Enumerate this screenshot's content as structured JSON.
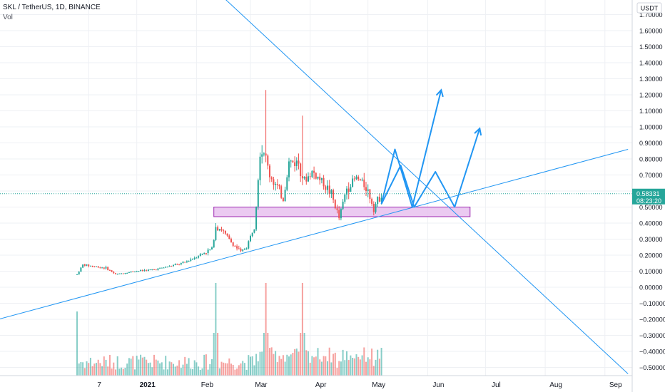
{
  "header": {
    "symbol": "SKL / TetherUS, 1D, BINANCE",
    "volume_label": "Vol"
  },
  "colors": {
    "up": "#26a69a",
    "down": "#ef5350",
    "trendline": "#2196f3",
    "zone_fill": "#e8c1ee",
    "zone_border": "#9c27b0",
    "price_tag": "#26a69a",
    "grid": "#eef0f4"
  },
  "chart_data": {
    "type": "candlestick",
    "currency_label": "USDT",
    "y_ticks": [
      "1.70000",
      "1.60000",
      "1.50000",
      "1.40000",
      "1.30000",
      "1.20000",
      "1.10000",
      "1.00000",
      "0.90000",
      "0.80000",
      "0.70000",
      "0.60000",
      "0.50000",
      "0.40000",
      "0.30000",
      "0.20000",
      "0.10000",
      "0.00000",
      "−0.10000",
      "−0.20000",
      "−0.30000",
      "−0.40000",
      "−0.50000"
    ],
    "y_tick_values": [
      1.7,
      1.6,
      1.5,
      1.4,
      1.3,
      1.2,
      1.1,
      1.0,
      0.9,
      0.8,
      0.7,
      0.6,
      0.5,
      0.4,
      0.3,
      0.2,
      0.1,
      0.0,
      -0.1,
      -0.2,
      -0.3,
      -0.4,
      -0.5
    ],
    "x_ticks": [
      {
        "label": "7",
        "day": 6
      },
      {
        "label": "2021",
        "day": 31
      },
      {
        "label": "Feb",
        "day": 62
      },
      {
        "label": "Mar",
        "day": 90
      },
      {
        "label": "Apr",
        "day": 121
      },
      {
        "label": "May",
        "day": 151
      },
      {
        "label": "Jun",
        "day": 182
      },
      {
        "label": "Jul",
        "day": 212
      },
      {
        "label": "Aug",
        "day": 243
      },
      {
        "label": "Sep",
        "day": 274
      }
    ],
    "last_price": "0.58331",
    "countdown": "08:23:20",
    "last_price_value": 0.58331,
    "price_keypoints": [
      {
        "day": 0,
        "price": 0.08
      },
      {
        "day": 3,
        "price": 0.14
      },
      {
        "day": 15,
        "price": 0.12
      },
      {
        "day": 20,
        "price": 0.08
      },
      {
        "day": 30,
        "price": 0.1
      },
      {
        "day": 40,
        "price": 0.11
      },
      {
        "day": 55,
        "price": 0.15
      },
      {
        "day": 70,
        "price": 0.24
      },
      {
        "day": 72,
        "price": 0.38
      },
      {
        "day": 75,
        "price": 0.36
      },
      {
        "day": 80,
        "price": 0.28
      },
      {
        "day": 85,
        "price": 0.22
      },
      {
        "day": 88,
        "price": 0.25
      },
      {
        "day": 92,
        "price": 0.38
      },
      {
        "day": 95,
        "price": 0.85
      },
      {
        "day": 97,
        "price": 0.85
      },
      {
        "day": 100,
        "price": 0.7
      },
      {
        "day": 104,
        "price": 0.62
      },
      {
        "day": 107,
        "price": 0.55
      },
      {
        "day": 110,
        "price": 0.78
      },
      {
        "day": 115,
        "price": 0.78
      },
      {
        "day": 118,
        "price": 0.66
      },
      {
        "day": 122,
        "price": 0.72
      },
      {
        "day": 128,
        "price": 0.65
      },
      {
        "day": 132,
        "price": 0.58
      },
      {
        "day": 136,
        "price": 0.43
      },
      {
        "day": 140,
        "price": 0.62
      },
      {
        "day": 145,
        "price": 0.68
      },
      {
        "day": 150,
        "price": 0.63
      },
      {
        "day": 154,
        "price": 0.5
      },
      {
        "day": 158,
        "price": 0.58
      }
    ],
    "spikes": [
      {
        "day": 98,
        "high": 1.23
      },
      {
        "day": 117,
        "high": 1.07
      },
      {
        "day": 72,
        "high": 0.4
      }
    ],
    "trendlines": [
      {
        "from": {
          "day": -47,
          "price": -0.22
        },
        "to": {
          "day": 286,
          "price": 0.86
        }
      },
      {
        "from": {
          "day": 73,
          "price": 1.84
        },
        "to": {
          "day": 286,
          "price": -0.54
        }
      }
    ],
    "support_zone": {
      "day_start": 71,
      "day_end": 204,
      "low": 0.44,
      "high": 0.5
    },
    "projection_arrows": [
      [
        {
          "day": 158,
          "price": 0.52
        },
        {
          "day": 165,
          "price": 0.86
        },
        {
          "day": 174,
          "price": 0.5
        },
        {
          "day": 189,
          "price": 1.23
        }
      ],
      [
        {
          "day": 158,
          "price": 0.52
        },
        {
          "day": 168,
          "price": 0.76
        },
        {
          "day": 175,
          "price": 0.5
        },
        {
          "day": 186,
          "price": 0.72
        },
        {
          "day": 196,
          "price": 0.5
        },
        {
          "day": 209,
          "price": 0.99
        }
      ]
    ]
  }
}
